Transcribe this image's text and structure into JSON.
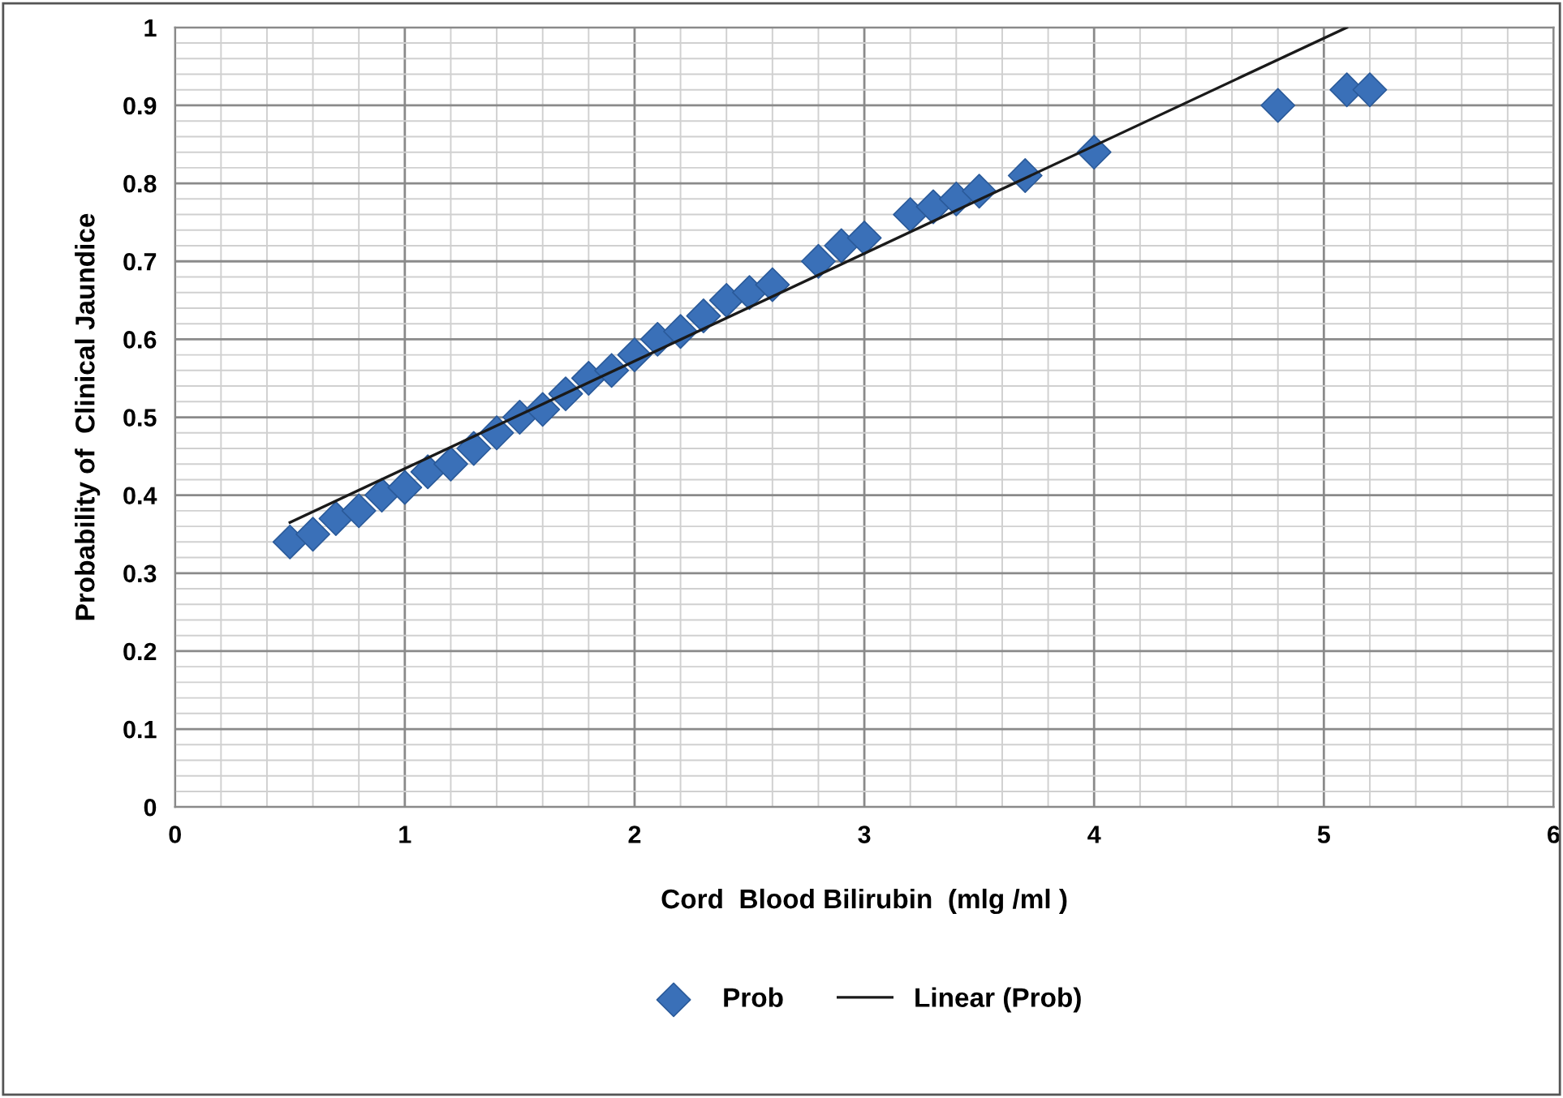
{
  "chart_data": {
    "type": "scatter",
    "xlabel": "Cord  Blood Bilirubin  (mlg /ml )",
    "ylabel": "Probability of  Clinical Jaundice",
    "xlim": [
      0,
      6
    ],
    "ylim": [
      0,
      1
    ],
    "xticks": [
      0,
      1,
      2,
      3,
      4,
      5,
      6
    ],
    "yticks": [
      0,
      0.1,
      0.2,
      0.3,
      0.4,
      0.5,
      0.6,
      0.7,
      0.8,
      0.9,
      1
    ],
    "grid": true,
    "legend": "bottom",
    "series": [
      {
        "name": "Prob",
        "marker": "diamond",
        "color": "#3a70b8",
        "x": [
          0.5,
          0.6,
          0.7,
          0.8,
          0.9,
          1.0,
          1.1,
          1.2,
          1.3,
          1.4,
          1.5,
          1.6,
          1.7,
          1.8,
          1.9,
          2.0,
          2.1,
          2.2,
          2.3,
          2.4,
          2.5,
          2.6,
          2.8,
          2.9,
          3.0,
          3.2,
          3.3,
          3.4,
          3.5,
          3.7,
          4.0,
          4.8,
          5.1,
          5.2
        ],
        "values": [
          0.34,
          0.35,
          0.37,
          0.38,
          0.4,
          0.41,
          0.43,
          0.44,
          0.46,
          0.48,
          0.5,
          0.51,
          0.53,
          0.55,
          0.56,
          0.58,
          0.6,
          0.61,
          0.63,
          0.65,
          0.66,
          0.67,
          0.7,
          0.72,
          0.73,
          0.76,
          0.77,
          0.78,
          0.79,
          0.81,
          0.84,
          0.9,
          0.92,
          0.92
        ]
      },
      {
        "name": "Linear (Prob)",
        "type": "line",
        "color": "#1a1a1a",
        "line_style": "solid",
        "marker": "none",
        "x": [
          0.5,
          5.1
        ],
        "values": [
          0.365,
          1.0
        ]
      }
    ]
  }
}
